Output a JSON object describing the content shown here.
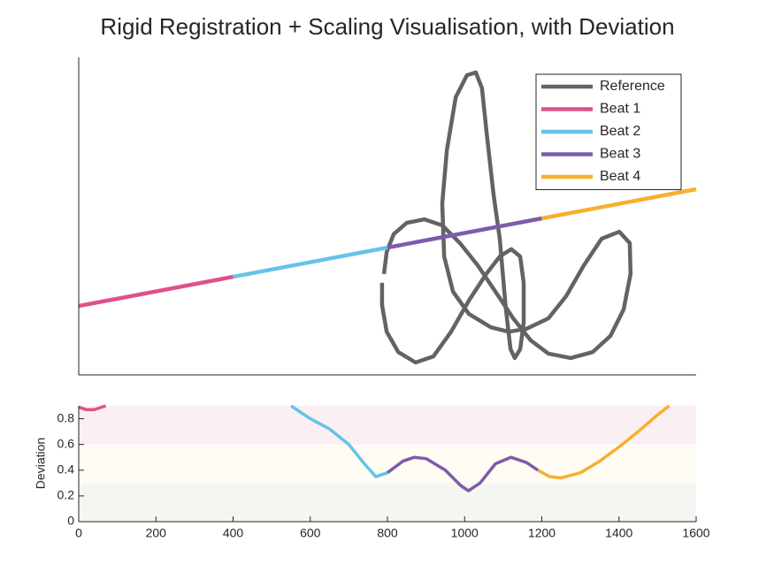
{
  "chart_data": [
    {
      "type": "line",
      "title": "Rigid Registration + Scaling Visualisation, with Deviation",
      "xlim": [
        0,
        1600
      ],
      "ylim": [
        0,
        1
      ],
      "legend": "northeast",
      "series": [
        {
          "name": "Reference",
          "color": "#636363",
          "x": [
            786,
            786,
            798,
            828,
            873,
            919,
            965,
            1011,
            1056,
            1091,
            1121,
            1144,
            1153,
            1153,
            1144,
            1130,
            1119,
            1107,
            1091,
            1075,
            1057,
            1045,
            1029,
            1006,
            977,
            954,
            942,
            947,
            970,
            1011,
            1068,
            1114,
            1160,
            1217,
            1263,
            1309,
            1355,
            1401,
            1428,
            1430,
            1412,
            1378,
            1332,
            1275,
            1217,
            1171,
            1126,
            1080,
            1034,
            988,
            942,
            896,
            850,
            816,
            798,
            791
          ],
          "values": [
            0.29,
            0.22,
            0.136,
            0.072,
            0.039,
            0.058,
            0.136,
            0.234,
            0.318,
            0.373,
            0.396,
            0.373,
            0.29,
            0.164,
            0.081,
            0.053,
            0.081,
            0.206,
            0.429,
            0.568,
            0.763,
            0.903,
            0.953,
            0.944,
            0.875,
            0.708,
            0.54,
            0.373,
            0.262,
            0.192,
            0.15,
            0.136,
            0.145,
            0.178,
            0.248,
            0.345,
            0.429,
            0.451,
            0.415,
            0.318,
            0.206,
            0.123,
            0.072,
            0.053,
            0.067,
            0.109,
            0.178,
            0.262,
            0.345,
            0.415,
            0.471,
            0.49,
            0.479,
            0.443,
            0.387,
            0.318
          ]
        },
        {
          "name": "Beat 1",
          "color": "#e0508a",
          "x": [
            0,
            400
          ],
          "values": [
            0.217,
            0.309
          ]
        },
        {
          "name": "Beat 2",
          "color": "#66c3e6",
          "x": [
            400,
            800
          ],
          "values": [
            0.309,
            0.401
          ]
        },
        {
          "name": "Beat 3",
          "color": "#7d5bab",
          "x": [
            800,
            1200
          ],
          "values": [
            0.401,
            0.493
          ]
        },
        {
          "name": "Beat 4",
          "color": "#f7b02e",
          "x": [
            1200,
            1600
          ],
          "values": [
            0.493,
            0.585
          ]
        }
      ]
    },
    {
      "type": "line",
      "ylabel": "Deviation",
      "xlim": [
        0,
        1600
      ],
      "ylim": [
        0,
        0.9
      ],
      "xticks": [
        0,
        200,
        400,
        600,
        800,
        1000,
        1200,
        1400,
        1600
      ],
      "yticks": [
        0,
        0.2,
        0.4,
        0.6,
        0.8
      ],
      "bands": [
        {
          "from": 0,
          "to": 0.3,
          "color": "#f4f7f1"
        },
        {
          "from": 0.3,
          "to": 0.6,
          "color": "#fffcf3"
        },
        {
          "from": 0.6,
          "to": 0.9,
          "color": "#faeff2"
        }
      ],
      "series": [
        {
          "color": "#e0508a",
          "x": [
            0,
            20,
            40,
            70
          ],
          "values": [
            0.89,
            0.87,
            0.87,
            0.9
          ]
        },
        {
          "color": "#66c3e6",
          "x": [
            550,
            600,
            650,
            700,
            740,
            770,
            800
          ],
          "values": [
            0.9,
            0.8,
            0.72,
            0.6,
            0.45,
            0.35,
            0.38
          ]
        },
        {
          "color": "#7d5bab",
          "x": [
            800,
            840,
            870,
            900,
            950,
            990,
            1010,
            1040,
            1080,
            1120,
            1160,
            1190
          ],
          "values": [
            0.38,
            0.47,
            0.5,
            0.49,
            0.4,
            0.28,
            0.24,
            0.3,
            0.45,
            0.5,
            0.46,
            0.4
          ]
        },
        {
          "color": "#f7b02e",
          "x": [
            1190,
            1220,
            1250,
            1300,
            1350,
            1400,
            1450,
            1500,
            1530
          ],
          "values": [
            0.4,
            0.35,
            0.34,
            0.38,
            0.47,
            0.58,
            0.7,
            0.83,
            0.9
          ]
        }
      ]
    }
  ]
}
